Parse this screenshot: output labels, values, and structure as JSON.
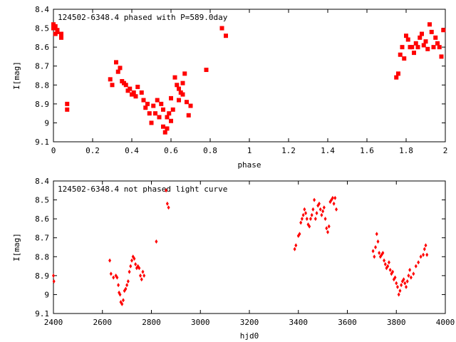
{
  "chart_data": [
    {
      "type": "scatter",
      "title": "124502-6348.4 phased with P=589.0day",
      "xlabel": "phase",
      "ylabel": "I[mag]",
      "xlim": [
        0,
        2
      ],
      "ylim": [
        9.1,
        8.4
      ],
      "y_inverted": true,
      "x_ticks": [
        "0",
        "0.2",
        "0.4",
        "0.6",
        "0.8",
        "1",
        "1.2",
        "1.4",
        "1.6",
        "1.8",
        "2"
      ],
      "y_ticks": [
        "8.4",
        "8.5",
        "8.6",
        "8.7",
        "8.8",
        "8.9",
        "9",
        "9.1"
      ],
      "marker_color": "#ff0000",
      "series": [
        {
          "x": [
            0.0,
            0.01,
            0.02,
            0.01,
            0.0,
            0.02,
            0.04,
            0.04,
            0.07,
            0.07,
            0.29,
            0.3,
            0.32,
            0.33,
            0.34,
            0.35,
            0.36,
            0.37,
            0.38,
            0.39,
            0.4,
            0.41,
            0.42,
            0.43,
            0.45,
            0.46,
            0.47,
            0.48,
            0.49,
            0.5,
            0.51,
            0.52,
            0.53,
            0.54,
            0.55,
            0.56,
            0.57,
            0.58,
            0.59,
            0.6,
            0.61,
            0.62,
            0.63,
            0.64,
            0.65,
            0.66,
            0.67,
            0.68,
            0.69,
            0.7,
            0.56,
            0.58,
            0.6,
            0.64,
            0.66,
            0.78,
            0.86,
            0.88,
            1.75,
            1.76,
            1.77,
            1.78,
            1.79,
            1.8,
            1.81,
            1.82,
            1.83,
            1.84,
            1.85,
            1.86,
            1.87,
            1.88,
            1.89,
            1.9,
            1.91,
            1.92,
            1.93,
            1.94,
            1.95,
            1.96,
            1.97,
            1.98,
            1.99
          ],
          "y": [
            8.5,
            8.49,
            8.51,
            8.53,
            8.48,
            8.52,
            8.53,
            8.55,
            8.9,
            8.93,
            8.77,
            8.8,
            8.68,
            8.73,
            8.71,
            8.78,
            8.79,
            8.8,
            8.83,
            8.82,
            8.85,
            8.84,
            8.86,
            8.81,
            8.84,
            8.88,
            8.92,
            8.9,
            8.95,
            9.0,
            8.91,
            8.95,
            8.88,
            8.97,
            8.9,
            9.02,
            9.05,
            9.03,
            8.95,
            8.99,
            8.93,
            8.76,
            8.8,
            8.88,
            8.84,
            8.85,
            8.74,
            8.89,
            8.96,
            8.91,
            8.93,
            8.97,
            8.87,
            8.82,
            8.79,
            8.72,
            8.5,
            8.54,
            8.76,
            8.74,
            8.64,
            8.6,
            8.66,
            8.54,
            8.56,
            8.6,
            8.6,
            8.63,
            8.58,
            8.6,
            8.55,
            8.53,
            8.59,
            8.57,
            8.61,
            8.48,
            8.52,
            8.6,
            8.55,
            8.58,
            8.6,
            8.65,
            8.51
          ]
        }
      ]
    },
    {
      "type": "scatter",
      "title": "124502-6348.4 not phased light curve",
      "xlabel": "hjd0",
      "ylabel": "I[mag]",
      "xlim": [
        2400,
        4000
      ],
      "ylim": [
        9.1,
        8.4
      ],
      "y_inverted": true,
      "x_ticks": [
        "2400",
        "2600",
        "2800",
        "3000",
        "3200",
        "3400",
        "3600",
        "3800",
        "4000"
      ],
      "y_ticks": [
        "8.4",
        "8.5",
        "8.6",
        "8.7",
        "8.8",
        "8.9",
        "9",
        "9.1"
      ],
      "marker_color": "#ff0000",
      "series": [
        {
          "x": [
            2400,
            2402,
            2630,
            2635,
            2645,
            2655,
            2660,
            2665,
            2668,
            2672,
            2675,
            2680,
            2685,
            2690,
            2695,
            2700,
            2705,
            2710,
            2715,
            2720,
            2725,
            2730,
            2735,
            2740,
            2745,
            2750,
            2755,
            2760,
            2765,
            2770,
            2820,
            2860,
            2865,
            2870,
            3385,
            3390,
            3400,
            3405,
            3410,
            3415,
            3420,
            3425,
            3430,
            3435,
            3440,
            3445,
            3450,
            3455,
            3460,
            3465,
            3470,
            3475,
            3480,
            3485,
            3490,
            3495,
            3500,
            3505,
            3510,
            3515,
            3520,
            3525,
            3530,
            3535,
            3540,
            3545,
            3550,
            3555,
            3705,
            3710,
            3715,
            3720,
            3725,
            3730,
            3735,
            3740,
            3745,
            3750,
            3755,
            3760,
            3765,
            3770,
            3775,
            3780,
            3785,
            3790,
            3795,
            3800,
            3805,
            3810,
            3815,
            3820,
            3825,
            3830,
            3835,
            3840,
            3845,
            3850,
            3855,
            3860,
            3870,
            3880,
            3890,
            3900,
            3910,
            3915,
            3920,
            3925
          ],
          "y": [
            8.9,
            8.93,
            8.82,
            8.89,
            8.91,
            8.9,
            8.91,
            8.95,
            8.99,
            9.0,
            9.04,
            9.05,
            9.03,
            8.98,
            8.97,
            8.95,
            8.93,
            8.88,
            8.85,
            8.82,
            8.8,
            8.81,
            8.84,
            8.86,
            8.85,
            8.86,
            8.9,
            8.92,
            8.88,
            8.9,
            8.72,
            8.45,
            8.52,
            8.54,
            8.76,
            8.74,
            8.69,
            8.68,
            8.62,
            8.6,
            8.58,
            8.55,
            8.57,
            8.6,
            8.63,
            8.64,
            8.6,
            8.58,
            8.55,
            8.5,
            8.6,
            8.57,
            8.53,
            8.52,
            8.55,
            8.58,
            8.56,
            8.54,
            8.6,
            8.65,
            8.67,
            8.64,
            8.51,
            8.5,
            8.49,
            8.52,
            8.49,
            8.55,
            8.77,
            8.8,
            8.75,
            8.68,
            8.72,
            8.78,
            8.8,
            8.79,
            8.78,
            8.82,
            8.84,
            8.86,
            8.85,
            8.83,
            8.87,
            8.89,
            8.88,
            8.92,
            8.91,
            8.94,
            8.96,
            9.0,
            8.98,
            8.95,
            8.93,
            8.92,
            8.94,
            8.96,
            8.93,
            8.9,
            8.87,
            8.91,
            8.89,
            8.85,
            8.83,
            8.8,
            8.79,
            8.76,
            8.74,
            8.79
          ]
        }
      ]
    }
  ]
}
